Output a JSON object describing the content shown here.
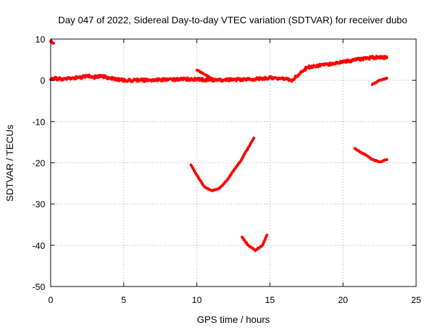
{
  "chart_data": {
    "type": "scatter",
    "title": "Day 047 of 2022, Sidereal Day-to-day VTEC variation (SDTVAR) for receiver dubo",
    "xlabel": "GPS time / hours",
    "ylabel": "SDTVAR / TECUs",
    "xlim": [
      0,
      25
    ],
    "ylim": [
      -50,
      10
    ],
    "xticks": [
      0,
      5,
      10,
      15,
      20,
      25
    ],
    "yticks": [
      10,
      0,
      -10,
      -20,
      -30,
      -40,
      -50
    ],
    "grid": true,
    "legend": "none",
    "series_color": "#ff0000",
    "series": [
      {
        "name": "trace-main",
        "noise": 0.35,
        "x": [
          0,
          1,
          2,
          2.5,
          3,
          3.5,
          4,
          5,
          6,
          7,
          8,
          9,
          10,
          11,
          12,
          13,
          14,
          15,
          16,
          16.5,
          17,
          17.5,
          18,
          19,
          20,
          21,
          22,
          23
        ],
        "y": [
          0.5,
          0.3,
          0.7,
          1,
          0.8,
          1,
          0.5,
          0,
          0,
          0.1,
          0.2,
          0.3,
          0.2,
          0.1,
          0.1,
          0.2,
          0.3,
          0.6,
          0.5,
          0,
          1.5,
          3,
          3.5,
          3.8,
          4.5,
          5,
          5.5,
          5.5
        ]
      },
      {
        "name": "trace-start-blip",
        "noise": 0.2,
        "x": [
          0,
          0.2
        ],
        "y": [
          9.5,
          9
        ]
      },
      {
        "name": "trace-bump-10h",
        "noise": 0.1,
        "x": [
          10,
          10.5,
          11
        ],
        "y": [
          2.5,
          1.5,
          0.5
        ]
      },
      {
        "name": "trace-late-rise",
        "noise": 0.1,
        "x": [
          22,
          22.5,
          23
        ],
        "y": [
          -1,
          0,
          0.5
        ]
      },
      {
        "name": "trace-arc-10h",
        "noise": 0.1,
        "x": [
          9.6,
          10,
          10.5,
          11,
          11.5,
          12,
          12.5,
          13,
          13.5,
          13.9
        ],
        "y": [
          -20.5,
          -23,
          -25.8,
          -26.8,
          -26.3,
          -24.5,
          -22,
          -19.5,
          -16.5,
          -14
        ]
      },
      {
        "name": "trace-arc-13h",
        "noise": 0.1,
        "x": [
          13.1,
          13.5,
          14,
          14.5,
          14.8
        ],
        "y": [
          -38,
          -40,
          -41.2,
          -40,
          -37.5
        ]
      },
      {
        "name": "trace-arc-21h",
        "noise": 0.1,
        "x": [
          20.8,
          21,
          21.5,
          22,
          22.5,
          23
        ],
        "y": [
          -16.5,
          -17,
          -18,
          -19.2,
          -19.8,
          -19.2
        ]
      }
    ]
  }
}
